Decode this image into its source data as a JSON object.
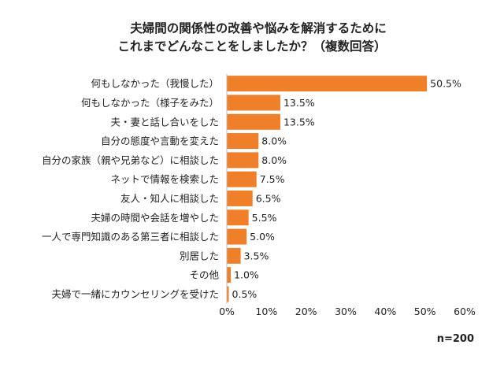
{
  "chart_data": {
    "type": "bar",
    "orientation": "horizontal",
    "title_lines": [
      "夫婦間の関係性の改善や悩みを解消するために",
      "これまでどんなことをしましたか？（複数回答）"
    ],
    "categories": [
      "何もしなかった（我慢した）",
      "何もしなかった（様子をみた）",
      "夫・妻と話し合いをした",
      "自分の態度や言動を変えた",
      "自分の家族（親や兄弟など）に相談した",
      "ネットで情報を検索した",
      "友人・知人に相談した",
      "夫婦の時間や会話を増やした",
      "一人で専門知識のある第三者に相談した",
      "別居した",
      "その他",
      "夫婦で一緒にカウンセリングを受けた"
    ],
    "values": [
      50.5,
      13.5,
      13.5,
      8.0,
      8.0,
      7.5,
      6.5,
      5.5,
      5.0,
      3.5,
      1.0,
      0.5
    ],
    "data_labels": [
      "50.5%",
      "13.5%",
      "13.5%",
      "8.0%",
      "8.0%",
      "7.5%",
      "6.5%",
      "5.5%",
      "5.0%",
      "3.5%",
      "1.0%",
      "0.5%"
    ],
    "xlim": [
      0,
      60
    ],
    "xticks": [
      "0%",
      "10%",
      "20%",
      "30%",
      "40%",
      "50%",
      "60%"
    ],
    "grid": false,
    "bar_color": "#F07F2A",
    "note": "n=200"
  }
}
